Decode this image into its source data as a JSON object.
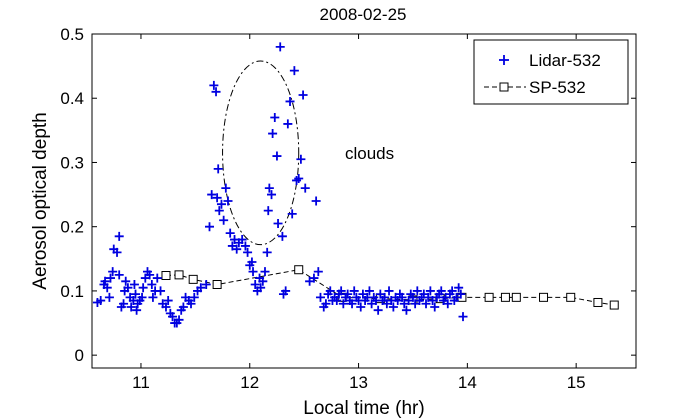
{
  "chart_data": {
    "type": "scatter",
    "title": "2008-02-25",
    "xlabel": "Local time (hr)",
    "ylabel": "Aerosol optical depth",
    "xlim": [
      10.55,
      15.55
    ],
    "ylim": [
      -0.02,
      0.5
    ],
    "xticks": [
      11,
      12,
      13,
      14,
      15
    ],
    "yticks": [
      0,
      0.1,
      0.2,
      0.3,
      0.4,
      0.5
    ],
    "xtick_labels": [
      "11",
      "12",
      "13",
      "14",
      "15"
    ],
    "ytick_labels": [
      "0",
      "0.1",
      "0.2",
      "0.3",
      "0.4",
      "0.5"
    ],
    "grid": false,
    "legend_position": "top-right",
    "annotation": {
      "text": "clouds",
      "ellipse_center": [
        12.1,
        0.315
      ],
      "ellipse_radii": [
        0.35,
        0.143
      ]
    },
    "series": [
      {
        "name": "Lidar-532",
        "marker": "plus",
        "color": "#0000e0",
        "points": [
          [
            10.6,
            0.082
          ],
          [
            10.63,
            0.085
          ],
          [
            10.66,
            0.11
          ],
          [
            10.67,
            0.115
          ],
          [
            10.69,
            0.105
          ],
          [
            10.71,
            0.09
          ],
          [
            10.72,
            0.12
          ],
          [
            10.74,
            0.13
          ],
          [
            10.75,
            0.165
          ],
          [
            10.78,
            0.16
          ],
          [
            10.8,
            0.185
          ],
          [
            10.8,
            0.125
          ],
          [
            10.82,
            0.075
          ],
          [
            10.84,
            0.08
          ],
          [
            10.85,
            0.1
          ],
          [
            10.86,
            0.115
          ],
          [
            10.88,
            0.105
          ],
          [
            10.9,
            0.09
          ],
          [
            10.91,
            0.075
          ],
          [
            10.93,
            0.085
          ],
          [
            10.94,
            0.11
          ],
          [
            10.95,
            0.095
          ],
          [
            10.96,
            0.07
          ],
          [
            10.97,
            0.08
          ],
          [
            10.99,
            0.085
          ],
          [
            11.01,
            0.09
          ],
          [
            11.02,
            0.105
          ],
          [
            11.04,
            0.12
          ],
          [
            11.06,
            0.13
          ],
          [
            11.08,
            0.125
          ],
          [
            11.1,
            0.11
          ],
          [
            11.11,
            0.09
          ],
          [
            11.13,
            0.1
          ],
          [
            11.15,
            0.12
          ],
          [
            11.18,
            0.1
          ],
          [
            11.2,
            0.08
          ],
          [
            11.23,
            0.075
          ],
          [
            11.25,
            0.085
          ],
          [
            11.27,
            0.065
          ],
          [
            11.29,
            0.06
          ],
          [
            11.31,
            0.05
          ],
          [
            11.33,
            0.05
          ],
          [
            11.35,
            0.055
          ],
          [
            11.37,
            0.07
          ],
          [
            11.39,
            0.075
          ],
          [
            11.41,
            0.09
          ],
          [
            11.44,
            0.085
          ],
          [
            11.46,
            0.08
          ],
          [
            11.49,
            0.09
          ],
          [
            11.52,
            0.1
          ],
          [
            11.55,
            0.105
          ],
          [
            11.6,
            0.11
          ],
          [
            11.63,
            0.2
          ],
          [
            11.65,
            0.25
          ],
          [
            11.67,
            0.42
          ],
          [
            11.69,
            0.41
          ],
          [
            11.7,
            0.245
          ],
          [
            11.71,
            0.29
          ],
          [
            11.72,
            0.225
          ],
          [
            11.74,
            0.235
          ],
          [
            11.76,
            0.21
          ],
          [
            11.78,
            0.26
          ],
          [
            11.8,
            0.24
          ],
          [
            11.82,
            0.19
          ],
          [
            11.84,
            0.17
          ],
          [
            11.86,
            0.18
          ],
          [
            11.88,
            0.165
          ],
          [
            11.9,
            0.175
          ],
          [
            11.93,
            0.18
          ],
          [
            11.96,
            0.17
          ],
          [
            11.98,
            0.16
          ],
          [
            12.0,
            0.14
          ],
          [
            12.02,
            0.145
          ],
          [
            12.03,
            0.13
          ],
          [
            12.05,
            0.11
          ],
          [
            12.07,
            0.1
          ],
          [
            12.09,
            0.12
          ],
          [
            12.1,
            0.105
          ],
          [
            12.12,
            0.115
          ],
          [
            12.14,
            0.13
          ],
          [
            12.16,
            0.16
          ],
          [
            12.17,
            0.225
          ],
          [
            12.18,
            0.26
          ],
          [
            12.2,
            0.25
          ],
          [
            12.21,
            0.345
          ],
          [
            12.23,
            0.37
          ],
          [
            12.25,
            0.31
          ],
          [
            12.26,
            0.205
          ],
          [
            12.28,
            0.48
          ],
          [
            12.3,
            0.185
          ],
          [
            12.31,
            0.095
          ],
          [
            12.33,
            0.1
          ],
          [
            12.35,
            0.36
          ],
          [
            12.37,
            0.395
          ],
          [
            12.39,
            0.22
          ],
          [
            12.41,
            0.443
          ],
          [
            12.43,
            0.272
          ],
          [
            12.45,
            0.275
          ],
          [
            12.47,
            0.305
          ],
          [
            12.49,
            0.405
          ],
          [
            12.51,
            0.26
          ],
          [
            12.55,
            0.115
          ],
          [
            12.59,
            0.12
          ],
          [
            12.61,
            0.24
          ],
          [
            12.63,
            0.13
          ],
          [
            12.65,
            0.09
          ],
          [
            12.68,
            0.075
          ],
          [
            12.7,
            0.08
          ],
          [
            12.72,
            0.095
          ],
          [
            12.74,
            0.1
          ],
          [
            12.76,
            0.085
          ],
          [
            12.78,
            0.09
          ],
          [
            12.8,
            0.085
          ],
          [
            12.82,
            0.095
          ],
          [
            12.84,
            0.1
          ],
          [
            12.86,
            0.08
          ],
          [
            12.88,
            0.09
          ],
          [
            12.9,
            0.095
          ],
          [
            12.92,
            0.085
          ],
          [
            12.94,
            0.08
          ],
          [
            12.96,
            0.1
          ],
          [
            12.98,
            0.09
          ],
          [
            13.0,
            0.085
          ],
          [
            13.02,
            0.075
          ],
          [
            13.04,
            0.095
          ],
          [
            13.06,
            0.085
          ],
          [
            13.08,
            0.09
          ],
          [
            13.1,
            0.1
          ],
          [
            13.12,
            0.08
          ],
          [
            13.14,
            0.09
          ],
          [
            13.16,
            0.085
          ],
          [
            13.18,
            0.07
          ],
          [
            13.2,
            0.095
          ],
          [
            13.22,
            0.085
          ],
          [
            13.24,
            0.09
          ],
          [
            13.26,
            0.08
          ],
          [
            13.28,
            0.1
          ],
          [
            13.3,
            0.085
          ],
          [
            13.32,
            0.075
          ],
          [
            13.34,
            0.09
          ],
          [
            13.36,
            0.085
          ],
          [
            13.38,
            0.095
          ],
          [
            13.4,
            0.09
          ],
          [
            13.42,
            0.08
          ],
          [
            13.44,
            0.07
          ],
          [
            13.46,
            0.085
          ],
          [
            13.48,
            0.095
          ],
          [
            13.5,
            0.09
          ],
          [
            13.52,
            0.08
          ],
          [
            13.54,
            0.1
          ],
          [
            13.56,
            0.085
          ],
          [
            13.58,
            0.09
          ],
          [
            13.6,
            0.095
          ],
          [
            13.62,
            0.08
          ],
          [
            13.64,
            0.09
          ],
          [
            13.66,
            0.1
          ],
          [
            13.68,
            0.085
          ],
          [
            13.7,
            0.075
          ],
          [
            13.72,
            0.09
          ],
          [
            13.74,
            0.095
          ],
          [
            13.76,
            0.1
          ],
          [
            13.78,
            0.085
          ],
          [
            13.8,
            0.09
          ],
          [
            13.82,
            0.08
          ],
          [
            13.84,
            0.095
          ],
          [
            13.86,
            0.1
          ],
          [
            13.88,
            0.085
          ],
          [
            13.9,
            0.09
          ],
          [
            13.92,
            0.105
          ],
          [
            13.94,
            0.095
          ],
          [
            13.96,
            0.06
          ]
        ]
      },
      {
        "name": "SP-532",
        "marker": "square",
        "line": "dashed",
        "color": "#000000",
        "points": [
          [
            11.23,
            0.124
          ],
          [
            11.35,
            0.125
          ],
          [
            11.48,
            0.118
          ],
          [
            11.7,
            0.11
          ],
          [
            12.45,
            0.133
          ],
          [
            12.85,
            0.09
          ],
          [
            13.2,
            0.088
          ],
          [
            13.5,
            0.086
          ],
          [
            13.75,
            0.088
          ],
          [
            13.95,
            0.09
          ],
          [
            14.2,
            0.09
          ],
          [
            14.35,
            0.09
          ],
          [
            14.45,
            0.09
          ],
          [
            14.7,
            0.09
          ],
          [
            14.95,
            0.09
          ],
          [
            15.2,
            0.082
          ],
          [
            15.35,
            0.078
          ]
        ]
      }
    ]
  }
}
